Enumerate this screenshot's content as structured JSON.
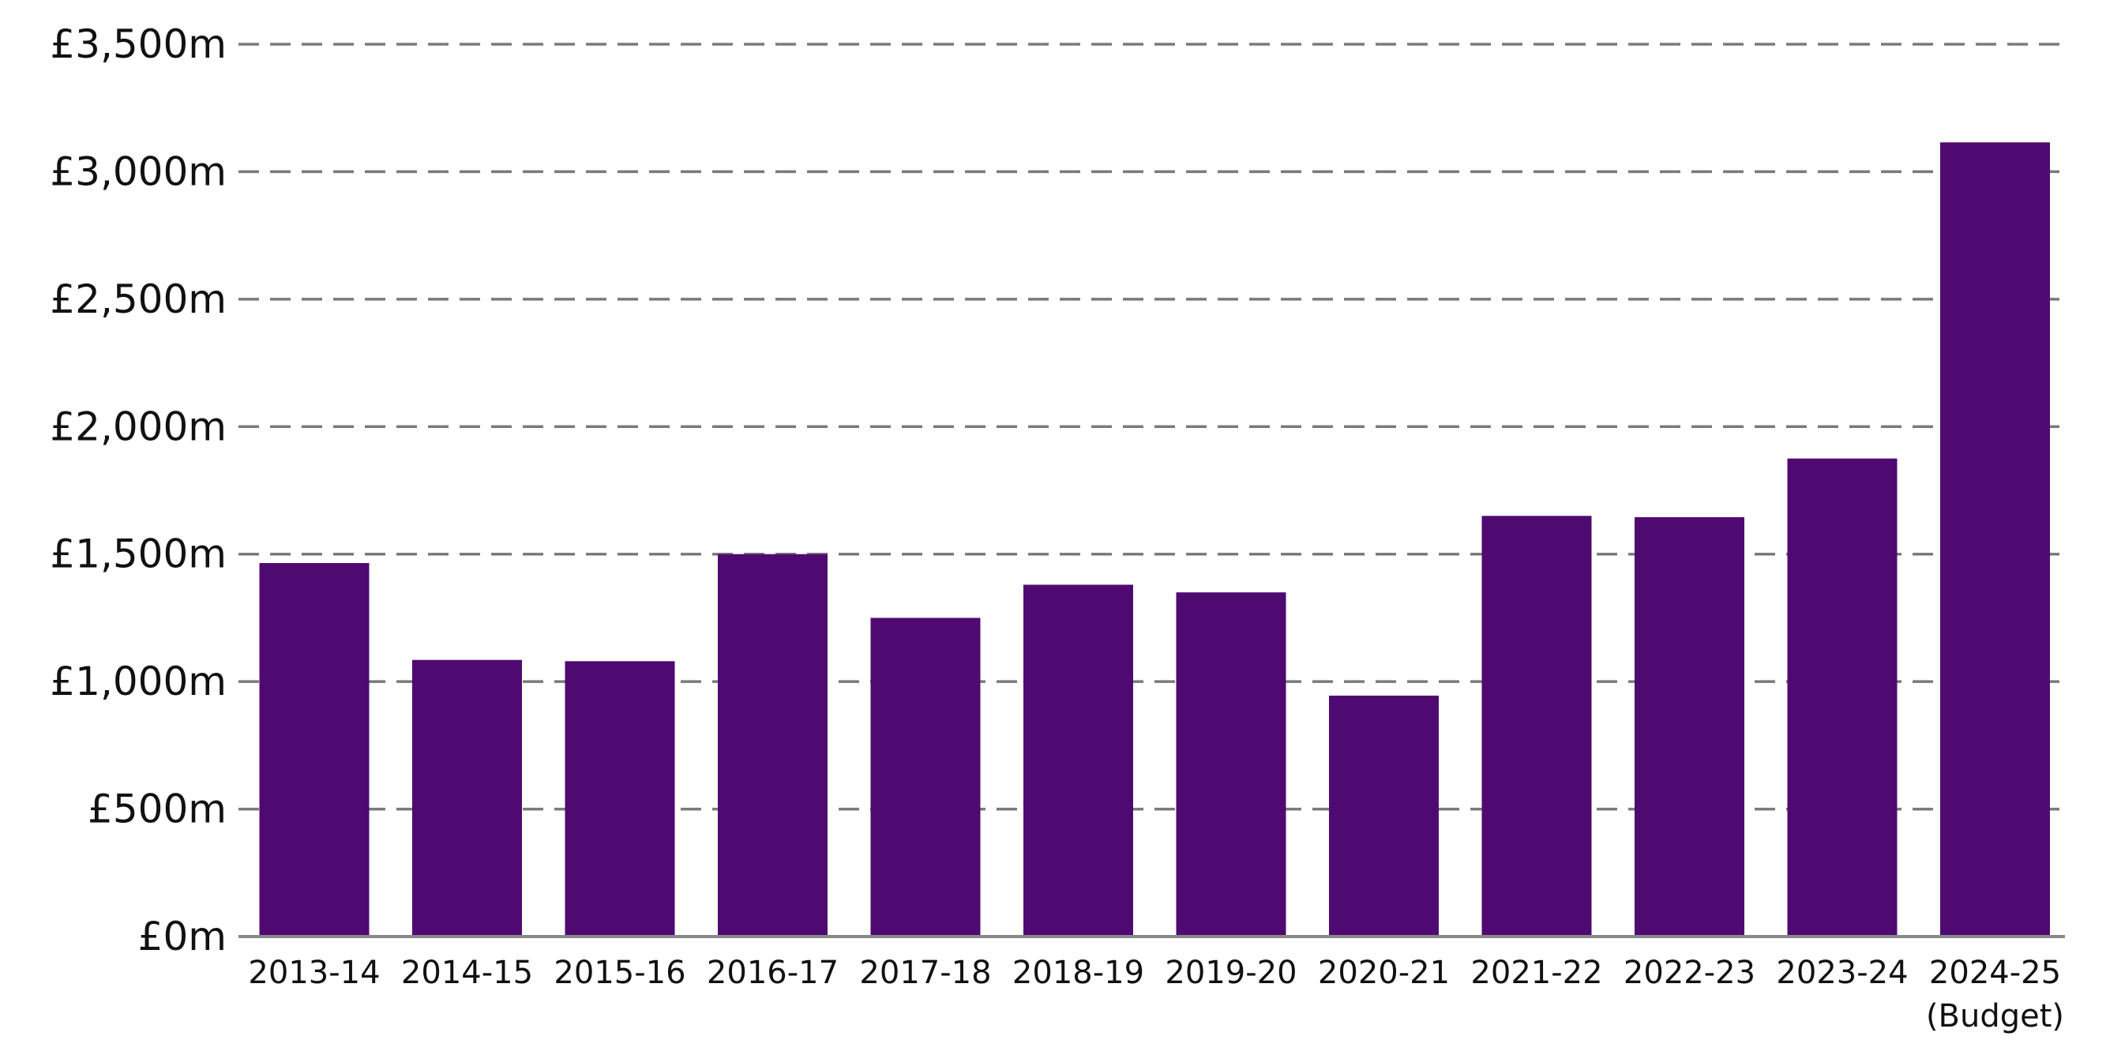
{
  "chart_data": {
    "type": "bar",
    "title": "",
    "xlabel": "",
    "ylabel": "",
    "categories": [
      "2013-14",
      "2014-15",
      "2015-16",
      "2016-17",
      "2017-18",
      "2018-19",
      "2019-20",
      "2020-21",
      "2021-22",
      "2022-23",
      "2023-24",
      "2024-25"
    ],
    "category_sublabels": [
      "",
      "",
      "",
      "",
      "",
      "",
      "",
      "",
      "",
      "",
      "",
      "(Budget)"
    ],
    "values": [
      1465,
      1085,
      1080,
      1500,
      1250,
      1380,
      1350,
      945,
      1650,
      1645,
      1875,
      3115
    ],
    "ylim": [
      0,
      3500
    ],
    "yticks": [
      0,
      500,
      1000,
      1500,
      2000,
      2500,
      3000,
      3500
    ],
    "ytick_labels": [
      "£0m",
      "£500m",
      "£1,000m",
      "£1,500m",
      "£2,000m",
      "£2,500m",
      "£3,000m",
      "£3,500m"
    ],
    "bar_color": "#4f0a72",
    "grid": true,
    "legend": "none"
  }
}
